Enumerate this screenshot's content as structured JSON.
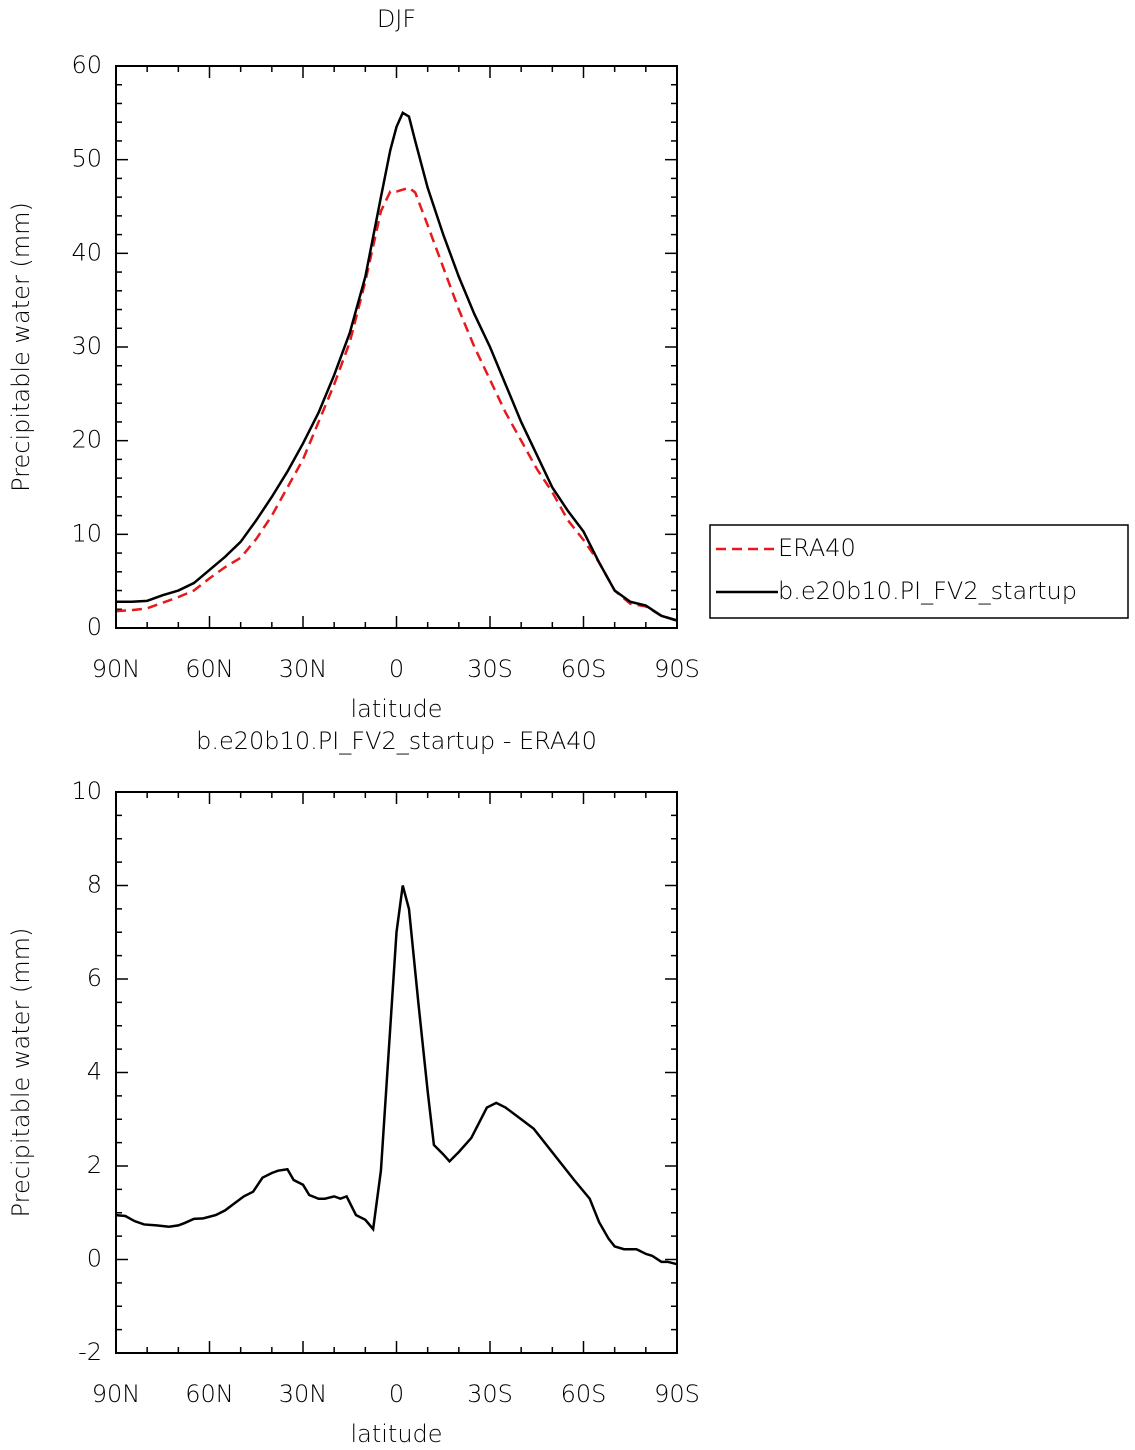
{
  "chart_data": [
    {
      "type": "line",
      "title": "DJF",
      "x_label": "latitude",
      "y_label": "Precipitable water (mm)",
      "x": [
        90,
        85,
        80,
        75,
        70,
        65,
        60,
        55,
        50,
        45,
        40,
        35,
        30,
        25,
        20,
        15,
        10,
        5,
        2,
        0,
        -2,
        -4,
        -6,
        -10,
        -15,
        -20,
        -25,
        -30,
        -35,
        -40,
        -45,
        -50,
        -55,
        -60,
        -65,
        -70,
        -75,
        -80,
        -85,
        -90
      ],
      "series": [
        {
          "name": "ERA40",
          "color": "#e41a1c",
          "style": "dashed",
          "values": [
            1.8,
            1.9,
            2.1,
            2.7,
            3.3,
            4.0,
            5.3,
            6.5,
            7.5,
            9.5,
            12.0,
            15.0,
            18.0,
            22.0,
            26.0,
            30.5,
            37.0,
            44.5,
            46.6,
            46.6,
            46.8,
            47.0,
            46.5,
            43.0,
            38.5,
            34.0,
            30.0,
            26.5,
            23.0,
            20.0,
            17.0,
            14.5,
            11.5,
            9.4,
            7.0,
            4.0,
            2.6,
            2.3,
            1.3,
            0.8
          ]
        },
        {
          "name": "b.e20b10.PI_FV2_startup",
          "color": "#000000",
          "style": "solid",
          "values": [
            2.8,
            2.8,
            2.9,
            3.5,
            4.0,
            4.8,
            6.2,
            7.6,
            9.2,
            11.5,
            14.0,
            16.7,
            19.7,
            23.0,
            27.0,
            31.5,
            37.5,
            46.0,
            51.0,
            53.5,
            55.0,
            54.6,
            52.0,
            47.0,
            42.0,
            37.5,
            33.5,
            30.0,
            26.0,
            22.0,
            18.5,
            15.0,
            12.5,
            10.3,
            7.0,
            4.0,
            2.8,
            2.4,
            1.3,
            0.8
          ]
        }
      ],
      "xlim": [
        90,
        -90
      ],
      "xticks": [
        {
          "value": 90,
          "label": "90N"
        },
        {
          "value": 60,
          "label": "60N"
        },
        {
          "value": 30,
          "label": "30N"
        },
        0,
        {
          "value": -30,
          "label": "30S"
        },
        {
          "value": -60,
          "label": "60S"
        },
        {
          "value": -90,
          "label": "90S"
        }
      ],
      "ylim": [
        0,
        60
      ],
      "yticks": [
        0,
        10,
        20,
        30,
        40,
        50,
        60
      ],
      "legend": "right"
    },
    {
      "type": "line",
      "title": "b.e20b10.PI_FV2_startup - ERA40",
      "x_label": "latitude",
      "y_label": "Precipitable water (mm)",
      "x": [
        90,
        87,
        84,
        81,
        77,
        73,
        70,
        68,
        65,
        62,
        58,
        55,
        52,
        49,
        46,
        43,
        40,
        38,
        35,
        33,
        30,
        28,
        25,
        23,
        20,
        18,
        16,
        13,
        10,
        7.5,
        5,
        0,
        -2,
        -4,
        -7,
        -10,
        -12,
        -15,
        -17,
        -20,
        -24,
        -29,
        -32,
        -35,
        -40,
        -44,
        -57,
        -62,
        -65,
        -68,
        -70,
        -73,
        -77,
        -80,
        -82,
        -85,
        -87,
        -90
      ],
      "values": [
        0.95,
        0.93,
        0.82,
        0.75,
        0.73,
        0.7,
        0.73,
        0.78,
        0.87,
        0.88,
        0.95,
        1.05,
        1.2,
        1.35,
        1.45,
        1.75,
        1.85,
        1.9,
        1.93,
        1.7,
        1.6,
        1.38,
        1.3,
        1.3,
        1.35,
        1.3,
        1.35,
        0.95,
        0.85,
        0.65,
        1.9,
        7.0,
        8.0,
        7.5,
        5.5,
        3.6,
        2.45,
        2.25,
        2.1,
        2.3,
        2.6,
        3.25,
        3.35,
        3.25,
        3.0,
        2.8,
        1.7,
        1.3,
        0.8,
        0.45,
        0.28,
        0.22,
        0.22,
        0.12,
        0.08,
        -0.05,
        -0.05,
        -0.1
      ],
      "color": "#000000",
      "xlim": [
        90,
        -90
      ],
      "xticks": [
        {
          "value": 90,
          "label": "90N"
        },
        {
          "value": 60,
          "label": "60N"
        },
        {
          "value": 30,
          "label": "30N"
        },
        0,
        {
          "value": -30,
          "label": "30S"
        },
        {
          "value": -60,
          "label": "60S"
        },
        {
          "value": -90,
          "label": "90S"
        }
      ],
      "ylim": [
        -2,
        10
      ],
      "yticks": [
        -2,
        0,
        2,
        4,
        6,
        8,
        10
      ]
    }
  ]
}
